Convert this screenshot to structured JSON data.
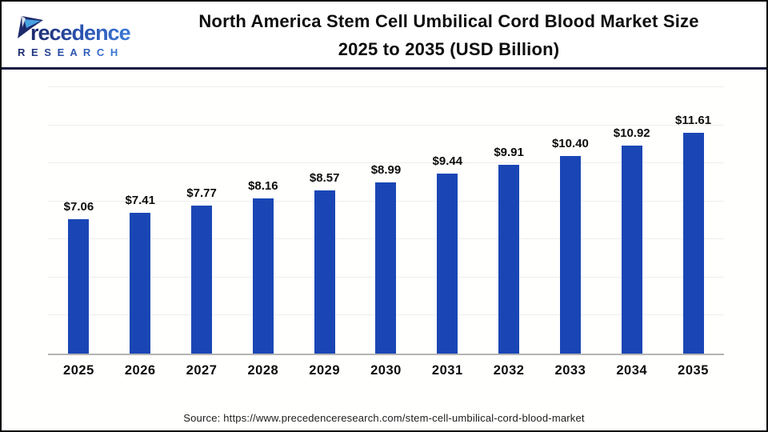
{
  "header": {
    "logo": {
      "brand": "recedence",
      "sub": "R E S E A R C H"
    },
    "title_line1": "North America Stem Cell Umbilical Cord Blood Market Size",
    "title_line2": "2025 to 2035 (USD Billion)"
  },
  "chart_data": {
    "type": "bar",
    "title": "North America Stem Cell Umbilical Cord Blood Market Size 2025 to 2035 (USD Billion)",
    "categories": [
      "2025",
      "2026",
      "2027",
      "2028",
      "2029",
      "2030",
      "2031",
      "2032",
      "2033",
      "2034",
      "2035"
    ],
    "values": [
      7.06,
      7.41,
      7.77,
      8.16,
      8.57,
      8.99,
      9.44,
      9.91,
      10.4,
      10.92,
      11.61
    ],
    "value_labels": [
      "$7.06",
      "$7.41",
      "$7.77",
      "$8.16",
      "$8.57",
      "$8.99",
      "$9.44",
      "$9.91",
      "$10.40",
      "$10.92",
      "$11.61"
    ],
    "xlabel": "",
    "ylabel": "",
    "ylim": [
      0,
      14
    ],
    "gridline_step": 2,
    "grid": "horizontal-only",
    "legend": "none",
    "bar_color": "#1a46b5"
  },
  "colors": {
    "bar": "#1a46b5",
    "header_rule": "#15153f",
    "axis_line": "#b3b3b3",
    "gridline": "#ededed",
    "logo_navy": "#1d2a6b",
    "logo_blue": "#3c7ad6",
    "logo_leaf": "#47a0e0"
  },
  "footer": {
    "source": "Source: https://www.precedenceresearch.com/stem-cell-umbilical-cord-blood-market"
  }
}
